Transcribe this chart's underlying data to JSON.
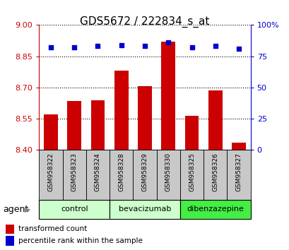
{
  "title": "GDS5672 / 222834_s_at",
  "samples": [
    "GSM958322",
    "GSM958323",
    "GSM958324",
    "GSM958328",
    "GSM958329",
    "GSM958330",
    "GSM958325",
    "GSM958326",
    "GSM958327"
  ],
  "bar_values": [
    8.57,
    8.635,
    8.64,
    8.78,
    8.705,
    8.92,
    8.565,
    8.685,
    8.435
  ],
  "percentile_values": [
    82,
    82,
    83,
    84,
    83,
    86,
    82,
    83,
    81
  ],
  "ylim_left": [
    8.4,
    9.0
  ],
  "ylim_right": [
    0,
    100
  ],
  "yticks_left": [
    8.4,
    8.55,
    8.7,
    8.85,
    9.0
  ],
  "yticks_right": [
    0,
    25,
    50,
    75,
    100
  ],
  "bar_color": "#cc0000",
  "dot_color": "#0000cc",
  "bar_width": 0.6,
  "group_boundaries": [
    {
      "start": 0,
      "end": 2,
      "label": "control",
      "color": "#ccffcc"
    },
    {
      "start": 3,
      "end": 5,
      "label": "bevacizumab",
      "color": "#ccffcc"
    },
    {
      "start": 6,
      "end": 8,
      "label": "dibenzazepine",
      "color": "#44ee44"
    }
  ],
  "agent_label": "agent",
  "legend_red": "transformed count",
  "legend_blue": "percentile rank within the sample",
  "tick_label_color_left": "#cc0000",
  "tick_label_color_right": "#0000cc",
  "sample_box_color": "#c8c8c8",
  "title_fontsize": 11
}
